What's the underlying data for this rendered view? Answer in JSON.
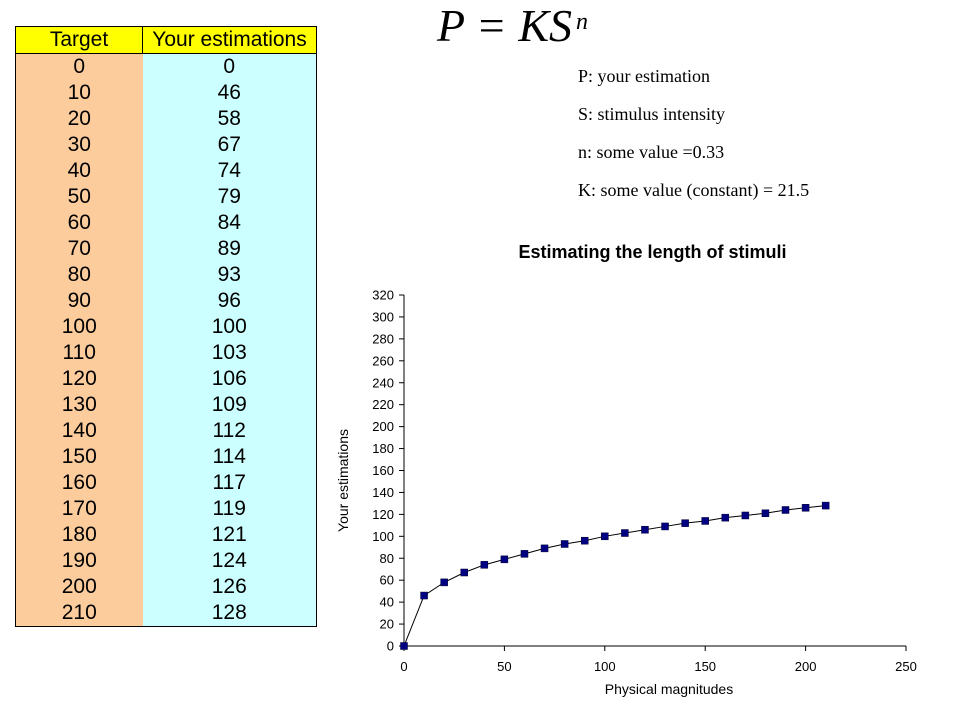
{
  "table": {
    "headers": [
      "Target",
      "Your estimations"
    ],
    "rows": [
      [
        "0",
        "0"
      ],
      [
        "10",
        "46"
      ],
      [
        "20",
        "58"
      ],
      [
        "30",
        "67"
      ],
      [
        "40",
        "74"
      ],
      [
        "50",
        "79"
      ],
      [
        "60",
        "84"
      ],
      [
        "70",
        "89"
      ],
      [
        "80",
        "93"
      ],
      [
        "90",
        "96"
      ],
      [
        "100",
        "100"
      ],
      [
        "110",
        "103"
      ],
      [
        "120",
        "106"
      ],
      [
        "130",
        "109"
      ],
      [
        "140",
        "112"
      ],
      [
        "150",
        "114"
      ],
      [
        "160",
        "117"
      ],
      [
        "170",
        "119"
      ],
      [
        "180",
        "121"
      ],
      [
        "190",
        "124"
      ],
      [
        "200",
        "126"
      ],
      [
        "210",
        "128"
      ]
    ],
    "colors": {
      "header": "#ffff00",
      "target": "#fccc9c",
      "estimation": "#ccffff"
    }
  },
  "formula": {
    "lhs": "P",
    "rhs": "= KS",
    "exponent": "n"
  },
  "notes": [
    "P: your estimation",
    "S: stimulus intensity",
    "n: some value =0.33",
    "K: some value (constant) = 21.5"
  ],
  "chart_data": {
    "type": "line",
    "title": "Estimating the length of stimuli",
    "xlabel": "Physical magnitudes",
    "ylabel": "Your estimations",
    "xlim": [
      0,
      250
    ],
    "ylim": [
      0,
      320
    ],
    "xticks": [
      0,
      50,
      100,
      150,
      200,
      250
    ],
    "yticks": [
      0,
      20,
      40,
      60,
      80,
      100,
      120,
      140,
      160,
      180,
      200,
      220,
      240,
      260,
      280,
      300,
      320
    ],
    "grid": false,
    "legend": "none",
    "marker": "square",
    "color": "#000080",
    "x": [
      0,
      10,
      20,
      30,
      40,
      50,
      60,
      70,
      80,
      90,
      100,
      110,
      120,
      130,
      140,
      150,
      160,
      170,
      180,
      190,
      200,
      210
    ],
    "series": [
      {
        "values": [
          0,
          46,
          58,
          67,
          74,
          79,
          84,
          89,
          93,
          96,
          100,
          103,
          106,
          109,
          112,
          114,
          117,
          119,
          121,
          124,
          126,
          128
        ]
      }
    ]
  }
}
